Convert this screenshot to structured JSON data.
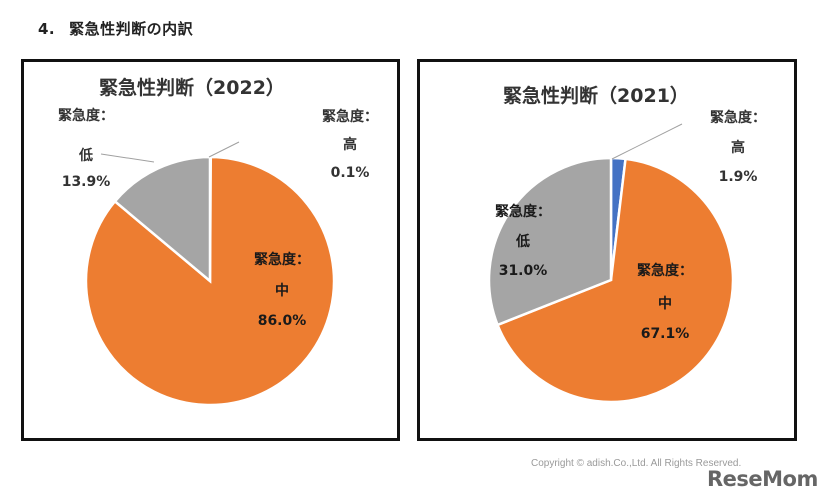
{
  "heading": {
    "number": "4.",
    "text": "緊急性判断の内訳"
  },
  "colors": {
    "high": "#4472c4",
    "mid": "#ed7d31",
    "low": "#a5a5a5"
  },
  "chart_data": [
    {
      "type": "pie",
      "title": "緊急性判断（2022）",
      "slices": [
        {
          "name": "高",
          "value": 0.1,
          "label_prefix": "緊急度：",
          "label_name": "高",
          "label_value": "0.1%",
          "color": "#4472c4"
        },
        {
          "name": "中",
          "value": 86.0,
          "label_prefix": "緊急度：",
          "label_name": "中",
          "label_value": "86.0%",
          "color": "#ed7d31"
        },
        {
          "name": "低",
          "value": 13.9,
          "label_prefix": "緊急度：",
          "label_name": "低",
          "label_value": "13.9%",
          "color": "#a5a5a5"
        }
      ]
    },
    {
      "type": "pie",
      "title": "緊急性判断（2021）",
      "slices": [
        {
          "name": "高",
          "value": 1.9,
          "label_prefix": "緊急度：",
          "label_name": "高",
          "label_value": "1.9%",
          "color": "#4472c4"
        },
        {
          "name": "中",
          "value": 67.1,
          "label_prefix": "緊急度：",
          "label_name": "中",
          "label_value": "67.1%",
          "color": "#ed7d31"
        },
        {
          "name": "低",
          "value": 31.0,
          "label_prefix": "緊急度：",
          "label_name": "低",
          "label_value": "31.0%",
          "color": "#a5a5a5"
        }
      ]
    }
  ],
  "footer": {
    "copyright": "Copyright © adish.Co.,Ltd.  All Rights Reserved.",
    "logo": "ReseMom"
  }
}
